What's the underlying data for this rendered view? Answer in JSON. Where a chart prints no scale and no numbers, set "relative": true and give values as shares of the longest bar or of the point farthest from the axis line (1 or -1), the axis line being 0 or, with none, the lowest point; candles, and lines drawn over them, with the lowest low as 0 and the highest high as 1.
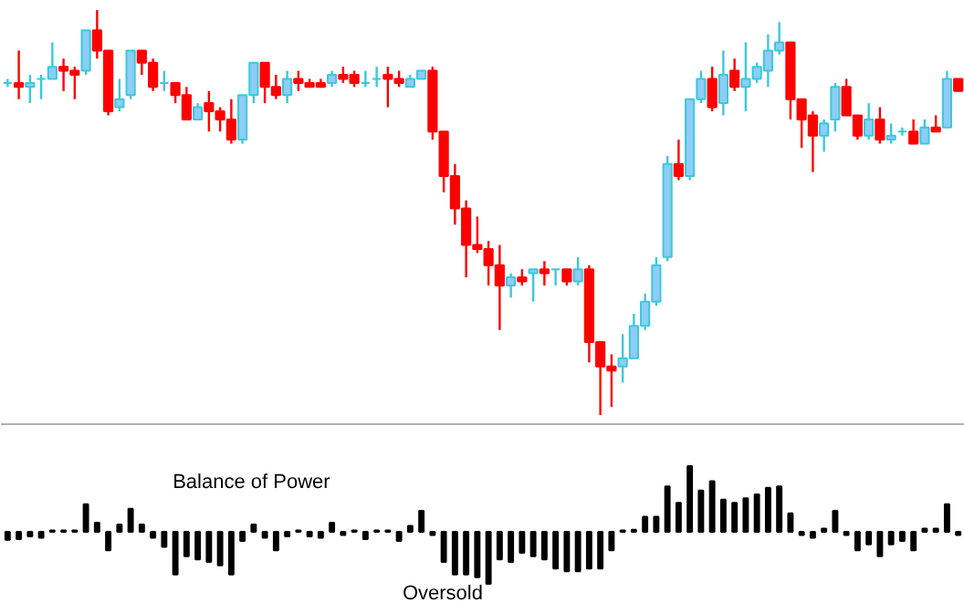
{
  "chart_data": [
    {
      "type": "candlestick",
      "relative": true,
      "tick_labels": false,
      "grid": false,
      "categories": [
        null,
        null,
        null,
        null,
        null,
        null,
        null,
        null,
        null,
        null,
        null,
        null,
        null,
        null,
        null,
        null,
        null,
        null,
        null,
        null,
        null,
        null,
        null,
        null,
        null,
        null,
        null,
        null,
        null,
        null,
        null,
        null,
        null,
        null,
        null,
        null,
        null,
        null,
        null,
        null,
        null,
        null,
        null,
        null,
        null,
        null,
        null,
        null,
        null,
        null,
        null,
        null,
        null,
        null,
        null,
        null,
        null,
        null,
        null,
        null,
        null,
        null,
        null,
        null,
        null,
        null,
        null,
        null,
        null,
        null,
        null,
        null,
        null,
        null,
        null,
        null,
        null,
        null,
        null,
        null,
        null,
        null,
        null,
        null,
        null,
        null
      ],
      "ohlc": [
        [
          0.82,
          0.83,
          0.81,
          0.82
        ],
        [
          0.82,
          0.9,
          0.78,
          0.81
        ],
        [
          0.81,
          0.84,
          0.77,
          0.82
        ],
        [
          0.83,
          0.84,
          0.78,
          0.83
        ],
        [
          0.83,
          0.92,
          0.83,
          0.86
        ],
        [
          0.86,
          0.88,
          0.8,
          0.85
        ],
        [
          0.85,
          0.86,
          0.78,
          0.84
        ],
        [
          0.85,
          0.95,
          0.84,
          0.95
        ],
        [
          0.95,
          1.0,
          0.88,
          0.9
        ],
        [
          0.9,
          0.9,
          0.74,
          0.75
        ],
        [
          0.76,
          0.83,
          0.75,
          0.78
        ],
        [
          0.79,
          0.9,
          0.78,
          0.9
        ],
        [
          0.9,
          0.9,
          0.84,
          0.87
        ],
        [
          0.87,
          0.88,
          0.8,
          0.81
        ],
        [
          0.82,
          0.85,
          0.8,
          0.82
        ],
        [
          0.82,
          0.82,
          0.77,
          0.79
        ],
        [
          0.79,
          0.81,
          0.73,
          0.73
        ],
        [
          0.73,
          0.77,
          0.73,
          0.76
        ],
        [
          0.77,
          0.8,
          0.7,
          0.75
        ],
        [
          0.75,
          0.76,
          0.7,
          0.73
        ],
        [
          0.73,
          0.78,
          0.67,
          0.68
        ],
        [
          0.68,
          0.79,
          0.67,
          0.79
        ],
        [
          0.79,
          0.87,
          0.77,
          0.87
        ],
        [
          0.87,
          0.87,
          0.77,
          0.81
        ],
        [
          0.81,
          0.84,
          0.78,
          0.79
        ],
        [
          0.79,
          0.85,
          0.77,
          0.83
        ],
        [
          0.83,
          0.85,
          0.8,
          0.82
        ],
        [
          0.82,
          0.83,
          0.81,
          0.81
        ],
        [
          0.82,
          0.83,
          0.81,
          0.81
        ],
        [
          0.82,
          0.85,
          0.81,
          0.84
        ],
        [
          0.84,
          0.86,
          0.82,
          0.83
        ],
        [
          0.84,
          0.85,
          0.81,
          0.82
        ],
        [
          0.82,
          0.85,
          0.81,
          0.82
        ],
        [
          0.83,
          0.86,
          0.81,
          0.83
        ],
        [
          0.84,
          0.86,
          0.76,
          0.83
        ],
        [
          0.83,
          0.85,
          0.81,
          0.82
        ],
        [
          0.81,
          0.84,
          0.81,
          0.83
        ],
        [
          0.83,
          0.85,
          0.83,
          0.85
        ],
        [
          0.85,
          0.86,
          0.68,
          0.7
        ],
        [
          0.7,
          0.7,
          0.55,
          0.59
        ],
        [
          0.59,
          0.62,
          0.47,
          0.51
        ],
        [
          0.51,
          0.53,
          0.34,
          0.42
        ],
        [
          0.42,
          0.49,
          0.4,
          0.41
        ],
        [
          0.41,
          0.43,
          0.32,
          0.37
        ],
        [
          0.37,
          0.42,
          0.21,
          0.32
        ],
        [
          0.32,
          0.35,
          0.29,
          0.34
        ],
        [
          0.34,
          0.36,
          0.32,
          0.33
        ],
        [
          0.35,
          0.36,
          0.28,
          0.36
        ],
        [
          0.36,
          0.38,
          0.32,
          0.35
        ],
        [
          0.36,
          0.36,
          0.32,
          0.36
        ],
        [
          0.36,
          0.36,
          0.32,
          0.33
        ],
        [
          0.33,
          0.39,
          0.32,
          0.36
        ],
        [
          0.36,
          0.37,
          0.13,
          0.18
        ],
        [
          0.18,
          0.18,
          0.0,
          0.12
        ],
        [
          0.12,
          0.15,
          0.02,
          0.11
        ],
        [
          0.12,
          0.2,
          0.08,
          0.14
        ],
        [
          0.14,
          0.25,
          0.14,
          0.22
        ],
        [
          0.22,
          0.3,
          0.21,
          0.28
        ],
        [
          0.28,
          0.39,
          0.27,
          0.37
        ],
        [
          0.39,
          0.64,
          0.38,
          0.62
        ],
        [
          0.62,
          0.68,
          0.58,
          0.59
        ],
        [
          0.59,
          0.78,
          0.58,
          0.78
        ],
        [
          0.78,
          0.85,
          0.77,
          0.83
        ],
        [
          0.83,
          0.86,
          0.75,
          0.76
        ],
        [
          0.77,
          0.9,
          0.74,
          0.84
        ],
        [
          0.85,
          0.88,
          0.8,
          0.81
        ],
        [
          0.81,
          0.92,
          0.75,
          0.83
        ],
        [
          0.83,
          0.87,
          0.82,
          0.86
        ],
        [
          0.85,
          0.94,
          0.81,
          0.9
        ],
        [
          0.9,
          0.97,
          0.89,
          0.92
        ],
        [
          0.92,
          0.92,
          0.73,
          0.78
        ],
        [
          0.78,
          0.78,
          0.66,
          0.73
        ],
        [
          0.74,
          0.75,
          0.6,
          0.69
        ],
        [
          0.69,
          0.73,
          0.65,
          0.72
        ],
        [
          0.73,
          0.82,
          0.7,
          0.81
        ],
        [
          0.81,
          0.83,
          0.74,
          0.74
        ],
        [
          0.74,
          0.74,
          0.68,
          0.69
        ],
        [
          0.69,
          0.77,
          0.68,
          0.73
        ],
        [
          0.73,
          0.76,
          0.67,
          0.68
        ],
        [
          0.68,
          0.72,
          0.67,
          0.69
        ],
        [
          0.7,
          0.71,
          0.69,
          0.7
        ],
        [
          0.7,
          0.73,
          0.67,
          0.67
        ],
        [
          0.67,
          0.73,
          0.67,
          0.71
        ],
        [
          0.71,
          0.74,
          0.7,
          0.7
        ],
        [
          0.71,
          0.85,
          0.71,
          0.83
        ],
        [
          0.83,
          0.83,
          0.8,
          0.8
        ]
      ]
    },
    {
      "type": "bar",
      "relative": true,
      "tick_labels": false,
      "grid": false,
      "color": "#000000",
      "annotations": [
        "Balance of Power",
        "Oversold"
      ],
      "categories": [
        null,
        null,
        null,
        null,
        null,
        null,
        null,
        null,
        null,
        null,
        null,
        null,
        null,
        null,
        null,
        null,
        null,
        null,
        null,
        null,
        null,
        null,
        null,
        null,
        null,
        null,
        null,
        null,
        null,
        null,
        null,
        null,
        null,
        null,
        null,
        null,
        null,
        null,
        null,
        null,
        null,
        null,
        null,
        null,
        null,
        null,
        null,
        null,
        null,
        null,
        null,
        null,
        null,
        null,
        null,
        null,
        null,
        null,
        null,
        null,
        null,
        null,
        null,
        null,
        null,
        null,
        null,
        null,
        null,
        null,
        null,
        null,
        null,
        null,
        null,
        null,
        null,
        null,
        null,
        null,
        null,
        null,
        null,
        null,
        null,
        null
      ],
      "values": [
        -0.12,
        -0.11,
        -0.07,
        -0.09,
        0.02,
        0.02,
        0.02,
        0.42,
        0.14,
        -0.28,
        0.11,
        0.35,
        0.11,
        -0.09,
        -0.23,
        -0.65,
        -0.37,
        -0.42,
        -0.46,
        -0.51,
        -0.65,
        -0.14,
        0.11,
        -0.09,
        -0.28,
        -0.07,
        0.02,
        -0.07,
        -0.09,
        0.14,
        -0.05,
        0.02,
        -0.11,
        0.02,
        0.02,
        -0.14,
        0.09,
        0.32,
        -0.05,
        -0.46,
        -0.65,
        -0.65,
        -0.69,
        -0.79,
        -0.42,
        -0.46,
        -0.32,
        -0.37,
        -0.42,
        -0.56,
        -0.6,
        -0.6,
        -0.56,
        -0.56,
        -0.28,
        0.02,
        0.03,
        0.23,
        0.23,
        0.69,
        0.44,
        1,
        0.63,
        0.77,
        0.49,
        0.44,
        0.51,
        0.57,
        0.67,
        0.69,
        0.28,
        -0.05,
        -0.09,
        0.05,
        0.32,
        -0.05,
        -0.28,
        -0.19,
        -0.37,
        -0.19,
        -0.14,
        -0.28,
        0.05,
        0.05,
        0.42,
        -0.05
      ]
    }
  ]
}
